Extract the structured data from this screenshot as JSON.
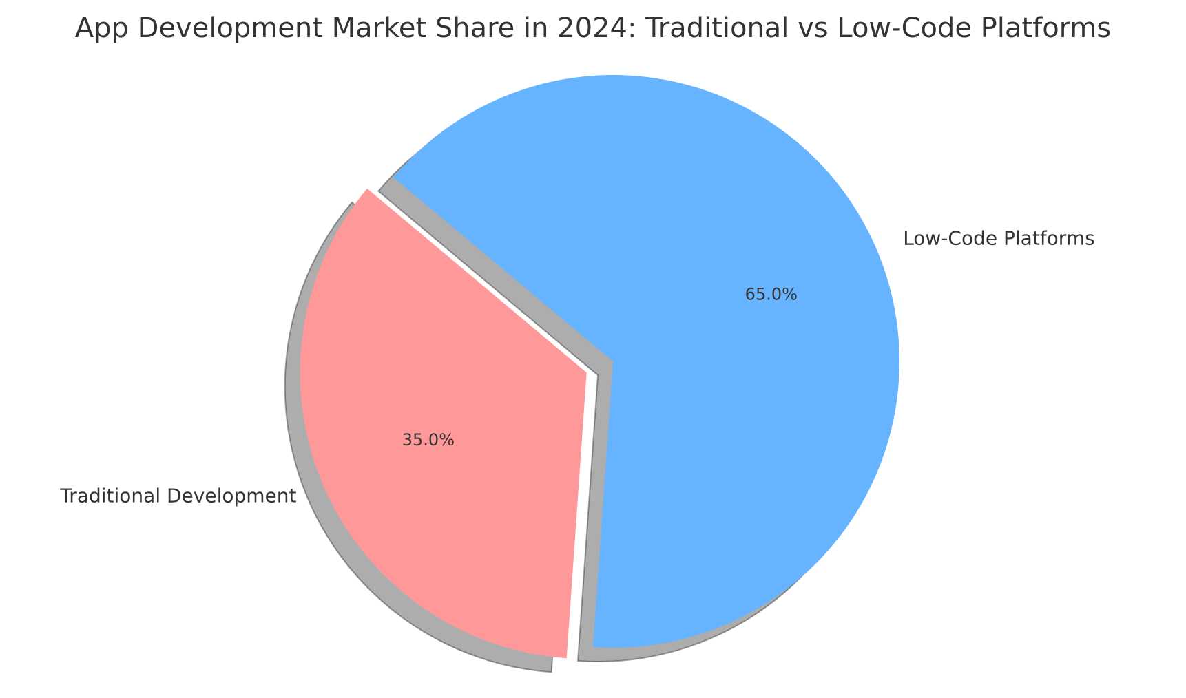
{
  "chart_data": {
    "type": "pie",
    "title": "App Development Market Share in 2024: Traditional vs Low-Code Platforms",
    "slices": [
      {
        "label": "Traditional Development",
        "value": 35.0,
        "pct_label": "35.0%",
        "color": "#ff9999",
        "exploded": true
      },
      {
        "label": "Low-Code Platforms",
        "value": 65.0,
        "pct_label": "65.0%",
        "color": "#66b3ff",
        "exploded": false
      }
    ],
    "start_angle_deg": 140,
    "counterclockwise": true,
    "shadow": true,
    "legend": "none"
  }
}
